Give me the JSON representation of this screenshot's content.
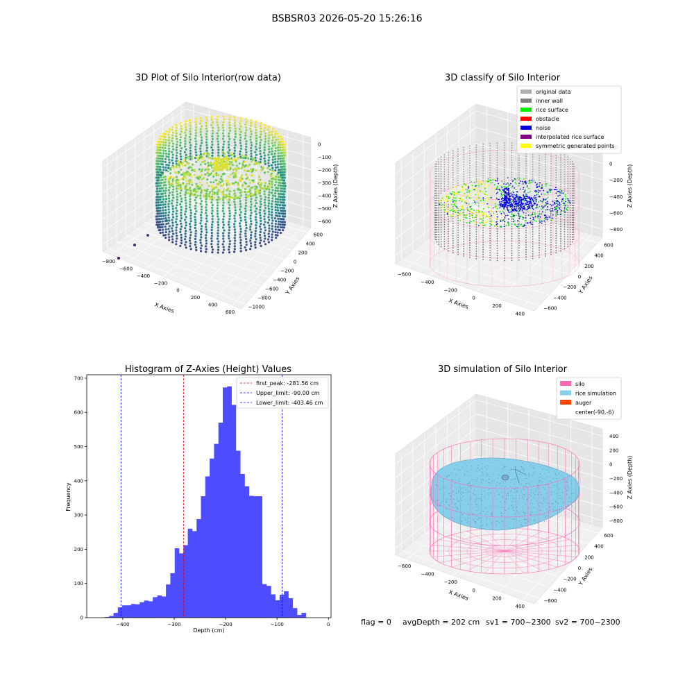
{
  "suptitle": "BSBSR03 2026-05-20 15:26:16",
  "chart_data": [
    {
      "type": "scatter",
      "title": "3D Plot of Silo Interior(row data)",
      "xlabel": "X Axies",
      "ylabel": "Y Axies",
      "zlabel": "Z Axies (Depth)",
      "xlim": [
        -800,
        600
      ],
      "ylim": [
        -1000,
        600
      ],
      "zlim": [
        -650,
        0
      ],
      "x_ticks": [
        "−800",
        "−600",
        "−400",
        "−200",
        "0",
        "200",
        "400",
        "600"
      ],
      "y_ticks": [
        "−1000",
        "−800",
        "−600",
        "−400",
        "−200",
        "0",
        "200",
        "400",
        "600"
      ],
      "z_ticks": [
        "0",
        "−100",
        "−200",
        "−300",
        "−400",
        "−500",
        "−600"
      ]
    },
    {
      "type": "scatter",
      "title": "3D classify of Silo Interior",
      "xlabel": "X Axies",
      "ylabel": "Y Axies",
      "zlabel": "Z Axies (Depth)",
      "x_ticks": [
        "−600",
        "−400",
        "−200",
        "0",
        "200",
        "400"
      ],
      "y_ticks": [
        "−600",
        "−400",
        "−200",
        "0",
        "200",
        "400",
        "600"
      ],
      "z_ticks": [
        "200",
        "0",
        "−200",
        "−400",
        "−600",
        "−800"
      ],
      "legend": [
        {
          "label": "original data",
          "color": "#b0b0b0"
        },
        {
          "label": "inner wall",
          "color": "#808080"
        },
        {
          "label": "rice surface",
          "color": "#00ee00"
        },
        {
          "label": "obstacle",
          "color": "#ff0000"
        },
        {
          "label": "noise",
          "color": "#0000dd"
        },
        {
          "label": "interpolated rice surface",
          "color": "#800080"
        },
        {
          "label": "symmetric generated points",
          "color": "#ffff00"
        }
      ],
      "legend_position": "top-right"
    },
    {
      "type": "bar",
      "title": "Histogram of Z-Axies (Height) Values",
      "xlabel": "Depth (cm)",
      "ylabel": "Frequency",
      "xlim": [
        -470,
        5
      ],
      "ylim": [
        0,
        710
      ],
      "x_ticks": [
        -400,
        -300,
        -200,
        -100,
        0
      ],
      "x_tick_labels": [
        "−400",
        "−300",
        "−200",
        "−100",
        "0"
      ],
      "y_ticks": [
        0,
        100,
        200,
        300,
        400,
        500,
        600,
        700
      ],
      "y_tick_labels": [
        "0",
        "100",
        "200",
        "300",
        "400",
        "500",
        "600",
        "700"
      ],
      "bin_start": -435,
      "bin_width": 8.5,
      "values": [
        2,
        5,
        14,
        30,
        36,
        36,
        40,
        39,
        45,
        50,
        48,
        60,
        65,
        62,
        97,
        130,
        203,
        188,
        212,
        260,
        253,
        288,
        355,
        413,
        465,
        508,
        570,
        673,
        676,
        622,
        488,
        420,
        384,
        356,
        355,
        355,
        98,
        93,
        68,
        51,
        67,
        77,
        57,
        28,
        8,
        14
      ],
      "bar_color": "#4d4dff",
      "lines": [
        {
          "label": "first_peak: -281.56 cm",
          "x": -281.56,
          "color": "#ee0000"
        },
        {
          "label": "Upper_limit: -90.00 cm",
          "x": -90.0,
          "color": "#0000ee"
        },
        {
          "label": "Lower_limit: -403.46 cm",
          "x": -403.46,
          "color": "#0000ee"
        }
      ],
      "legend_position": "top-right"
    },
    {
      "type": "scatter",
      "title": "3D simulation of Silo Interior",
      "xlabel": "X Axies",
      "ylabel": "Y Axies",
      "zlabel": "Z Axies (Depth)",
      "x_ticks": [
        "−600",
        "−400",
        "−200",
        "0",
        "200",
        "400"
      ],
      "y_ticks": [
        "−600",
        "−400",
        "−200",
        "0",
        "200",
        "400",
        "600"
      ],
      "z_ticks": [
        "400",
        "200",
        "0",
        "−200",
        "−400",
        "−600",
        "−800"
      ],
      "legend": [
        {
          "label": "silo",
          "color": "#ff69b4"
        },
        {
          "label": "rice simulation",
          "color": "#87ceeb"
        },
        {
          "label": "auger",
          "color": "#ff4500"
        },
        {
          "label": "center(-90,-6)",
          "color": "#ffffff"
        }
      ],
      "legend_position": "top-right"
    }
  ],
  "status": {
    "flag": "flag = 0",
    "avg_depth": "avgDepth = 202 cm",
    "sv1": "sv1 = 700~2300",
    "sv2": "sv2 = 700~2300"
  }
}
